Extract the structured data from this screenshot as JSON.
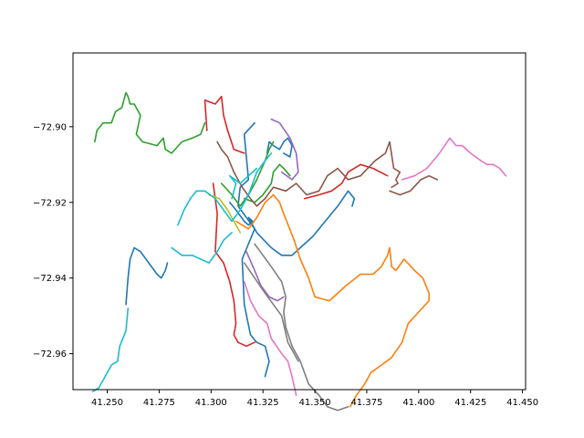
{
  "chart_data": {
    "type": "line",
    "title": "",
    "xlabel": "",
    "ylabel": "",
    "xlim": [
      41.2335,
      41.4515
    ],
    "ylim": [
      -72.9695,
      -72.8805
    ],
    "grid": false,
    "x_ticks": [
      41.25,
      41.275,
      41.3,
      41.325,
      41.35,
      41.375,
      41.4,
      41.425,
      41.45
    ],
    "x_tick_labels": [
      "41.250",
      "41.275",
      "41.300",
      "41.325",
      "41.350",
      "41.375",
      "41.400",
      "41.425",
      "41.450"
    ],
    "y_ticks": [
      -72.96,
      -72.94,
      -72.92,
      -72.9
    ],
    "y_tick_labels": [
      "−72.96",
      "−72.94",
      "−72.92",
      "−72.90"
    ],
    "series": [
      {
        "color": "#1f77b4",
        "x": [
          41.259,
          41.26,
          41.261,
          41.263,
          41.266,
          41.27,
          41.274,
          41.276,
          41.278,
          41.279
        ],
        "y": [
          -72.947,
          -72.94,
          -72.935,
          -72.932,
          -72.933,
          -72.936,
          -72.939,
          -72.94,
          -72.938,
          -72.936
        ]
      },
      {
        "color": "#1f77b4",
        "x": [
          41.309,
          41.312,
          41.316,
          41.318,
          41.32,
          41.318,
          41.322,
          41.329,
          41.334,
          41.339,
          41.343,
          41.349,
          41.355,
          41.361,
          41.366,
          41.369,
          41.368
        ],
        "y": [
          -72.92,
          -72.922,
          -72.925,
          -72.926,
          -72.925,
          -72.924,
          -72.928,
          -72.932,
          -72.934,
          -72.934,
          -72.932,
          -72.929,
          -72.925,
          -72.921,
          -72.917,
          -72.919,
          -72.921
        ]
      },
      {
        "color": "#1f77b4",
        "x": [
          41.327,
          41.328,
          41.33,
          41.333,
          41.335,
          41.337,
          41.339,
          41.338,
          41.335
        ],
        "y": [
          -72.907,
          -72.904,
          -72.905,
          -72.906,
          -72.904,
          -72.903,
          -72.905,
          -72.908,
          -72.907
        ]
      },
      {
        "color": "#1f77b4",
        "x": [
          41.321,
          41.316,
          41.318,
          41.314,
          41.313,
          41.321,
          41.315,
          41.316,
          41.319,
          41.322,
          41.326,
          41.328,
          41.326
        ],
        "y": [
          -72.899,
          -72.902,
          -72.914,
          -72.916,
          -72.921,
          -72.927,
          -72.935,
          -72.947,
          -72.955,
          -72.957,
          -72.958,
          -72.962,
          -72.966
        ]
      },
      {
        "color": "#ff7f0e",
        "x": [
          41.312,
          41.318,
          41.322,
          41.326,
          41.33,
          41.333,
          41.335,
          41.34
        ],
        "y": [
          -72.925,
          -72.927,
          -72.924,
          -72.92,
          -72.918,
          -72.92,
          -72.923,
          -72.93
        ]
      },
      {
        "color": "#ff7f0e",
        "x": [
          41.34,
          41.343,
          41.347,
          41.35,
          41.357,
          41.365,
          41.372,
          41.378,
          41.382,
          41.385,
          41.386,
          41.387,
          41.389,
          41.393,
          41.398,
          41.402,
          41.405,
          41.405,
          41.4
        ],
        "y": [
          -72.93,
          -72.935,
          -72.94,
          -72.945,
          -72.946,
          -72.942,
          -72.939,
          -72.939,
          -72.937,
          -72.934,
          -72.932,
          -72.937,
          -72.938,
          -72.935,
          -72.938,
          -72.94,
          -72.944,
          -72.946,
          -72.949
        ]
      },
      {
        "color": "#ff7f0e",
        "x": [
          41.4,
          41.395,
          41.392,
          41.387,
          41.382,
          41.377,
          41.374,
          41.37,
          41.367
        ],
        "y": [
          -72.949,
          -72.952,
          -72.957,
          -72.961,
          -72.963,
          -72.965,
          -72.968,
          -72.971,
          -72.974
        ]
      },
      {
        "color": "#2ca02c",
        "x": [
          41.244,
          41.245,
          41.248,
          41.252,
          41.254,
          41.257,
          41.259,
          41.26,
          41.261,
          41.263,
          41.266,
          41.264,
          41.267,
          41.274,
          41.277,
          41.278,
          41.281,
          41.286,
          41.291,
          41.295,
          41.297
        ],
        "y": [
          -72.904,
          -72.901,
          -72.899,
          -72.899,
          -72.896,
          -72.895,
          -72.891,
          -72.892,
          -72.894,
          -72.894,
          -72.897,
          -72.902,
          -72.904,
          -72.905,
          -72.903,
          -72.906,
          -72.907,
          -72.904,
          -72.903,
          -72.902,
          -72.899
        ]
      },
      {
        "color": "#2ca02c",
        "x": [
          41.316,
          41.321,
          41.325,
          41.329,
          41.33,
          41.333,
          41.335,
          41.338
        ],
        "y": [
          -72.919,
          -72.92,
          -72.918,
          -72.915,
          -72.912,
          -72.91,
          -72.911,
          -72.913
        ]
      },
      {
        "color": "#2ca02c",
        "x": [
          41.305,
          41.31,
          41.314,
          41.318,
          41.322,
          41.326,
          41.328,
          41.33
        ],
        "y": [
          -72.915,
          -72.918,
          -72.921,
          -72.918,
          -72.914,
          -72.909,
          -72.906,
          -72.904
        ]
      },
      {
        "color": "#d62728",
        "x": [
          41.298,
          41.297,
          41.302,
          41.305,
          41.306,
          41.308,
          41.311,
          41.316
        ],
        "y": [
          -72.901,
          -72.893,
          -72.894,
          -72.892,
          -72.897,
          -72.901,
          -72.906,
          -72.907
        ]
      },
      {
        "color": "#d62728",
        "x": [
          41.301,
          41.303,
          41.302,
          41.306,
          41.309,
          41.311,
          41.312,
          41.311,
          41.313,
          41.317,
          41.321
        ],
        "y": [
          -72.915,
          -72.923,
          -72.933,
          -72.936,
          -72.941,
          -72.946,
          -72.952,
          -72.955,
          -72.957,
          -72.958,
          -72.957
        ]
      },
      {
        "color": "#d62728",
        "x": [
          41.345,
          41.352,
          41.358,
          41.363,
          41.366,
          41.372,
          41.378,
          41.385
        ],
        "y": [
          -72.919,
          -72.918,
          -72.917,
          -72.915,
          -72.912,
          -72.91,
          -72.911,
          -72.913
        ]
      },
      {
        "color": "#9467bd",
        "x": [
          41.329,
          41.333,
          41.338,
          41.341,
          41.342,
          41.339,
          41.334
        ],
        "y": [
          -72.898,
          -72.899,
          -72.903,
          -72.907,
          -72.912,
          -72.914,
          -72.912
        ]
      },
      {
        "color": "#9467bd",
        "x": [
          41.317,
          41.321,
          41.324,
          41.328,
          41.332,
          41.335
        ],
        "y": [
          -72.933,
          -72.938,
          -72.942,
          -72.945,
          -72.946,
          -72.945
        ]
      },
      {
        "color": "#8c564b",
        "x": [
          41.303,
          41.305,
          41.308,
          41.311,
          41.315,
          41.319,
          41.322,
          41.326,
          41.33,
          41.336
        ],
        "y": [
          -72.904,
          -72.906,
          -72.908,
          -72.912,
          -72.916,
          -72.919,
          -72.921,
          -72.919,
          -72.916,
          -72.917
        ]
      },
      {
        "color": "#8c564b",
        "x": [
          41.336,
          41.341,
          41.346,
          41.352,
          41.356,
          41.361,
          41.366,
          41.372,
          41.379,
          41.384,
          41.386,
          41.388,
          41.391,
          41.389,
          41.39,
          41.387
        ],
        "y": [
          -72.917,
          -72.915,
          -72.918,
          -72.917,
          -72.913,
          -72.911,
          -72.914,
          -72.913,
          -72.909,
          -72.907,
          -72.904,
          -72.911,
          -72.912,
          -72.914,
          -72.915,
          -72.916
        ]
      },
      {
        "color": "#8c564b",
        "x": [
          41.386,
          41.391,
          41.396,
          41.401,
          41.405,
          41.409
        ],
        "y": [
          -72.917,
          -72.918,
          -72.917,
          -72.914,
          -72.913,
          -72.914
        ]
      },
      {
        "color": "#e377c2",
        "x": [
          41.392,
          41.398,
          41.404,
          41.41,
          41.415,
          41.418,
          41.421,
          41.425,
          41.43,
          41.433,
          41.436,
          41.439,
          41.442
        ],
        "y": [
          -72.914,
          -72.913,
          -72.911,
          -72.907,
          -72.903,
          -72.905,
          -72.905,
          -72.907,
          -72.909,
          -72.91,
          -72.91,
          -72.911,
          -72.913
        ]
      },
      {
        "color": "#e377c2",
        "x": [
          41.316,
          41.319,
          41.323,
          41.327,
          41.329,
          41.334,
          41.337,
          41.339,
          41.341
        ],
        "y": [
          -72.941,
          -72.946,
          -72.95,
          -72.952,
          -72.956,
          -72.96,
          -72.962,
          -72.966,
          -72.971
        ]
      },
      {
        "color": "#7f7f7f",
        "x": [
          41.321,
          41.325,
          41.329,
          41.334,
          41.336,
          41.335,
          41.336,
          41.339,
          41.343,
          41.347,
          41.352,
          41.356,
          41.361,
          41.366
        ],
        "y": [
          -72.931,
          -72.934,
          -72.937,
          -72.941,
          -72.945,
          -72.949,
          -72.953,
          -72.958,
          -72.962,
          -72.968,
          -72.971,
          -72.974,
          -72.975,
          -72.974
        ]
      },
      {
        "color": "#7f7f7f",
        "x": [
          41.316,
          41.321,
          41.326,
          41.33,
          41.334,
          41.337,
          41.342
        ],
        "y": [
          -72.936,
          -72.94,
          -72.944,
          -72.947,
          -72.95,
          -72.957,
          -72.962
        ]
      },
      {
        "color": "#bcbd22",
        "x": [
          41.299,
          41.304,
          41.308,
          41.311,
          41.314
        ],
        "y": [
          -72.918,
          -72.919,
          -72.922,
          -72.925,
          -72.928
        ]
      },
      {
        "color": "#17becf",
        "x": [
          41.243,
          41.246,
          41.249,
          41.252,
          41.255,
          41.256,
          41.259,
          41.26
        ],
        "y": [
          -72.97,
          -72.969,
          -72.966,
          -72.963,
          -72.962,
          -72.958,
          -72.954,
          -72.948
        ]
      },
      {
        "color": "#17becf",
        "x": [
          41.281,
          41.286,
          41.291,
          41.295,
          41.299,
          41.303,
          41.306,
          41.31
        ],
        "y": [
          -72.932,
          -72.934,
          -72.934,
          -72.935,
          -72.936,
          -72.933,
          -72.93,
          -72.928
        ]
      },
      {
        "color": "#17becf",
        "x": [
          41.284,
          41.287,
          41.29,
          41.293,
          41.297,
          41.302,
          41.306,
          41.31,
          41.314,
          41.318,
          41.322,
          41.326,
          41.329
        ],
        "y": [
          -72.926,
          -72.922,
          -72.919,
          -72.917,
          -72.917,
          -72.919,
          -72.922,
          -72.925,
          -72.922,
          -72.918,
          -72.912,
          -72.909,
          -72.907
        ]
      },
      {
        "color": "#17becf",
        "x": [
          41.31,
          41.312,
          41.309,
          41.314,
          41.318,
          41.322
        ],
        "y": [
          -72.919,
          -72.915,
          -72.913,
          -72.915,
          -72.913,
          -72.911
        ]
      }
    ]
  }
}
